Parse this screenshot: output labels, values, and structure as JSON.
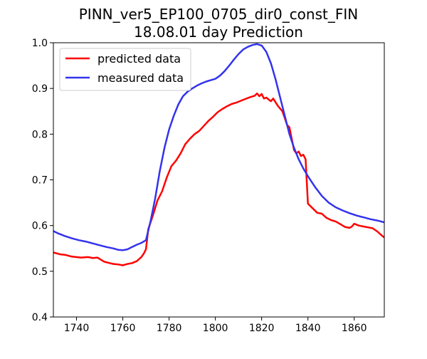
{
  "chart_data": {
    "type": "line",
    "title_lines": [
      "PINN_ver5_EP100_0705_dir0_const_FIN",
      "18.08.01 day Prediction"
    ],
    "xlabel": "",
    "ylabel": "",
    "xlim": [
      1730,
      1873
    ],
    "ylim": [
      0.4,
      1.0
    ],
    "xticks": [
      1740,
      1760,
      1780,
      1800,
      1820,
      1840,
      1860
    ],
    "yticks": [
      0.4,
      0.5,
      0.6,
      0.7,
      0.8,
      0.9,
      1.0
    ],
    "grid": false,
    "legend_position": "upper-left",
    "series": [
      {
        "name": "predicted data",
        "color": "#ff0000",
        "x": [
          1730,
          1733,
          1735,
          1738,
          1742,
          1745,
          1747,
          1749,
          1752,
          1755,
          1756,
          1758,
          1760,
          1762,
          1764,
          1766,
          1768,
          1769,
          1770,
          1771,
          1773,
          1775,
          1777,
          1779,
          1781,
          1783,
          1785,
          1787,
          1789,
          1791,
          1793,
          1795,
          1797,
          1799,
          1801,
          1803,
          1805,
          1807,
          1809,
          1811,
          1813,
          1815,
          1817,
          1818,
          1819,
          1820,
          1821,
          1822,
          1823,
          1824,
          1825,
          1827,
          1829,
          1830,
          1831,
          1832,
          1833,
          1834,
          1835,
          1836,
          1837,
          1838,
          1839,
          1840,
          1842,
          1844,
          1846,
          1848,
          1850,
          1852,
          1854,
          1856,
          1858,
          1859,
          1860,
          1862,
          1864,
          1866,
          1868,
          1870,
          1872,
          1873
        ],
        "y": [
          0.541,
          0.537,
          0.536,
          0.532,
          0.53,
          0.531,
          0.529,
          0.53,
          0.521,
          0.517,
          0.516,
          0.515,
          0.513,
          0.516,
          0.518,
          0.522,
          0.531,
          0.538,
          0.548,
          0.592,
          0.622,
          0.655,
          0.675,
          0.705,
          0.73,
          0.742,
          0.758,
          0.778,
          0.79,
          0.8,
          0.807,
          0.818,
          0.829,
          0.838,
          0.848,
          0.855,
          0.861,
          0.866,
          0.869,
          0.873,
          0.877,
          0.881,
          0.884,
          0.889,
          0.883,
          0.888,
          0.878,
          0.88,
          0.876,
          0.872,
          0.878,
          0.862,
          0.85,
          0.835,
          0.82,
          0.815,
          0.79,
          0.765,
          0.758,
          0.762,
          0.752,
          0.755,
          0.745,
          0.648,
          0.638,
          0.628,
          0.626,
          0.617,
          0.612,
          0.609,
          0.603,
          0.597,
          0.595,
          0.598,
          0.604,
          0.6,
          0.598,
          0.596,
          0.594,
          0.587,
          0.578,
          0.574
        ]
      },
      {
        "name": "measured data",
        "color": "#3333ee",
        "x": [
          1730,
          1732,
          1735,
          1738,
          1741,
          1744,
          1747,
          1750,
          1753,
          1756,
          1758,
          1760,
          1762,
          1764,
          1766,
          1768,
          1770,
          1772,
          1774,
          1776,
          1778,
          1780,
          1782,
          1784,
          1786,
          1788,
          1790,
          1792,
          1794,
          1796,
          1798,
          1800,
          1802,
          1804,
          1806,
          1808,
          1810,
          1812,
          1814,
          1816,
          1818,
          1820,
          1822,
          1824,
          1826,
          1828,
          1830,
          1832,
          1834,
          1836,
          1838,
          1840,
          1843,
          1846,
          1849,
          1852,
          1855,
          1858,
          1861,
          1864,
          1867,
          1870,
          1873
        ],
        "y": [
          0.588,
          0.583,
          0.577,
          0.572,
          0.568,
          0.565,
          0.561,
          0.557,
          0.553,
          0.55,
          0.547,
          0.546,
          0.548,
          0.553,
          0.558,
          0.562,
          0.568,
          0.61,
          0.66,
          0.72,
          0.77,
          0.81,
          0.84,
          0.865,
          0.883,
          0.893,
          0.9,
          0.906,
          0.911,
          0.915,
          0.918,
          0.921,
          0.928,
          0.938,
          0.95,
          0.963,
          0.975,
          0.985,
          0.991,
          0.995,
          0.997,
          0.994,
          0.98,
          0.955,
          0.92,
          0.88,
          0.84,
          0.8,
          0.77,
          0.745,
          0.725,
          0.708,
          0.685,
          0.665,
          0.65,
          0.64,
          0.633,
          0.627,
          0.622,
          0.618,
          0.614,
          0.611,
          0.607
        ]
      }
    ]
  }
}
